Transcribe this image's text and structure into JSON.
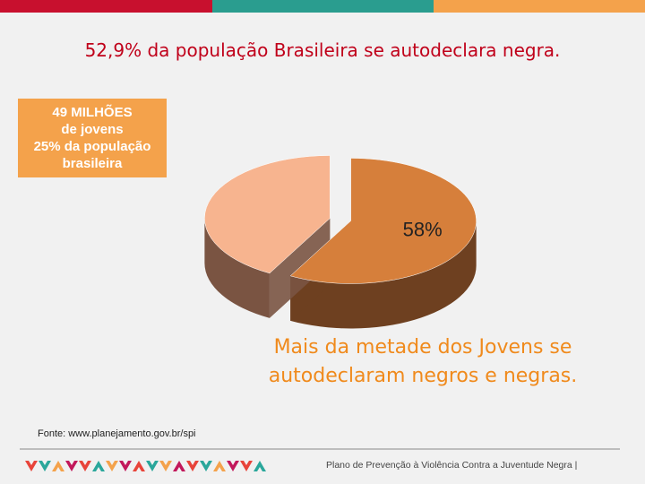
{
  "colors": {
    "topbar": [
      "#c8102e",
      "#2a9d8f",
      "#f4a24b"
    ],
    "title": "#c0001a",
    "infobox_bg": "#f4a24b",
    "subtitle": "#f08a1c",
    "slice_large": "#d67f3b",
    "slice_large_side": "#6e4020",
    "slice_small": "#f7b48f",
    "slice_small_side": "#7a5442",
    "chevrons": [
      "#e8443a",
      "#2aa79b",
      "#f4a24b",
      "#c2185b"
    ]
  },
  "title": "52,9% da população Brasileira se autodeclara negra.",
  "infobox": {
    "line1": "49 MILHÕES",
    "line2": "de jovens",
    "line3": "25% da população",
    "line4": "brasileira"
  },
  "chart_data": {
    "type": "pie",
    "style": "3d-exploded",
    "slices": [
      {
        "value": 58,
        "label": "58%"
      },
      {
        "value": 42,
        "label": ""
      }
    ]
  },
  "subtitle_line1": "Mais da metade dos Jovens se",
  "subtitle_line2": "autodeclaram negros e negras.",
  "source": "Fonte: www.planejamento.gov.br/spi",
  "footer": "Plano de Prevenção à Violência Contra a Juventude Negra  |"
}
